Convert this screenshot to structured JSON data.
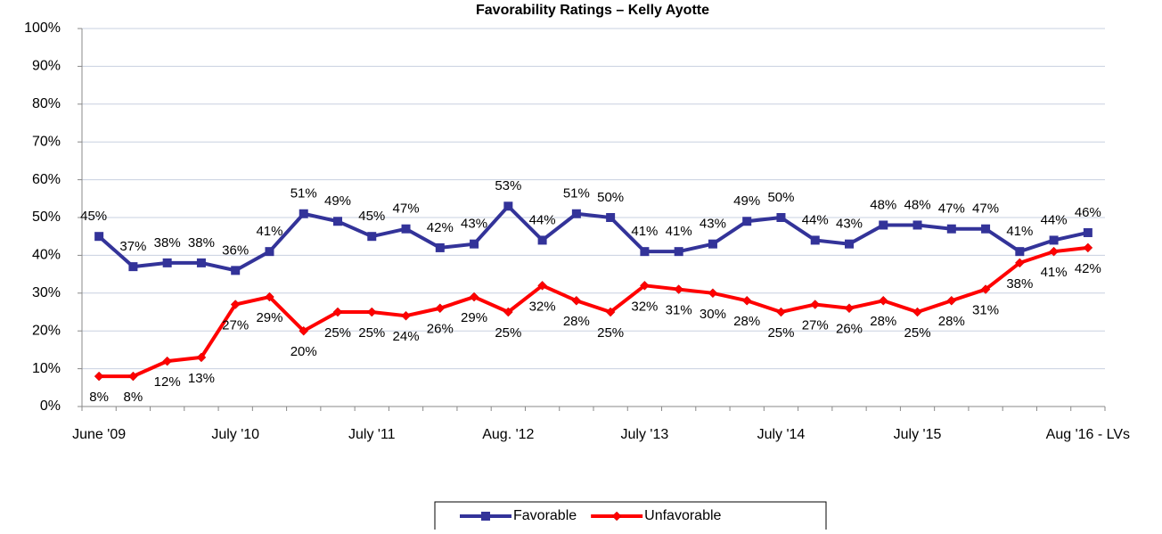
{
  "chart_data": {
    "type": "line",
    "title": "Favorability Ratings – Kelly Ayotte",
    "categories": [
      "June '09",
      null,
      null,
      null,
      "July '10",
      null,
      null,
      null,
      "July '11",
      null,
      null,
      null,
      "Aug. '12",
      null,
      null,
      null,
      "July '13",
      null,
      null,
      null,
      "July '14",
      null,
      null,
      null,
      "July '15",
      null,
      null,
      null,
      null,
      "Aug '16 - LVs"
    ],
    "series": [
      {
        "name": "Favorable",
        "color": "#333399",
        "marker": "square",
        "values": [
          45,
          37,
          38,
          38,
          36,
          41,
          51,
          49,
          45,
          47,
          42,
          43,
          53,
          44,
          51,
          50,
          41,
          41,
          43,
          49,
          50,
          44,
          43,
          48,
          48,
          47,
          47,
          41,
          44,
          46
        ],
        "value_labels": [
          "45%",
          "37%",
          "38%",
          "38%",
          "36%",
          "41%",
          "51%",
          "49%",
          "45%",
          "47%",
          "42%",
          "43%",
          "53%",
          "44%",
          "51%",
          "50%",
          "41%",
          "41%",
          "43%",
          "49%",
          "50%",
          "44%",
          "43%",
          "48%",
          "48%",
          "47%",
          "47%",
          "41%",
          "44%",
          "46%"
        ]
      },
      {
        "name": "Unfavorable",
        "color": "#ff0000",
        "marker": "diamond",
        "values": [
          8,
          8,
          12,
          13,
          27,
          29,
          20,
          25,
          25,
          24,
          26,
          29,
          25,
          32,
          28,
          25,
          32,
          31,
          30,
          28,
          25,
          27,
          26,
          28,
          25,
          28,
          31,
          38,
          41,
          42
        ],
        "value_labels": [
          "8%",
          "8%",
          "12%",
          "13%",
          "27%",
          "29%",
          "20%",
          "25%",
          "25%",
          "24%",
          "26%",
          "29%",
          "25%",
          "32%",
          "28%",
          "25%",
          "32%",
          "31%",
          "30%",
          "28%",
          "25%",
          "27%",
          "26%",
          "28%",
          "25%",
          "28%",
          "31%",
          "38%",
          "41%",
          "42%"
        ]
      }
    ],
    "ylim": [
      0,
      100
    ],
    "yticks": [
      {
        "value": 0,
        "label": "0%"
      },
      {
        "value": 10,
        "label": "10%"
      },
      {
        "value": 20,
        "label": "20%"
      },
      {
        "value": 30,
        "label": "30%"
      },
      {
        "value": 40,
        "label": "40%"
      },
      {
        "value": 50,
        "label": "50%"
      },
      {
        "value": 60,
        "label": "60%"
      },
      {
        "value": 70,
        "label": "70%"
      },
      {
        "value": 80,
        "label": "80%"
      },
      {
        "value": 90,
        "label": "90%"
      },
      {
        "value": 100,
        "label": "100%"
      }
    ],
    "grid": true,
    "legend": "bottom"
  }
}
